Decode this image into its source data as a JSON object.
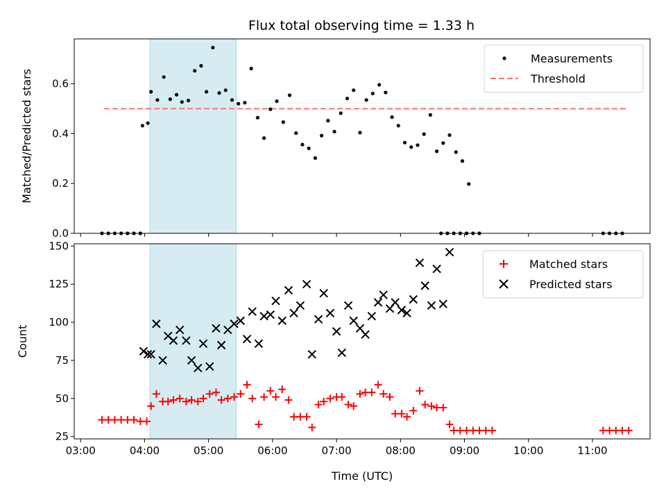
{
  "chart_data": [
    {
      "type": "scatter",
      "title": "Flux total observing time = 1.33 h",
      "xlabel": "",
      "ylabel": "Matched/Predicted stars",
      "xlim": [
        "02:54",
        "11:54"
      ],
      "ylim": [
        0,
        0.78
      ],
      "yticks": [
        "0.0",
        "0.2",
        "0.4",
        "0.6"
      ],
      "shaded_interval": [
        "04:05",
        "05:26"
      ],
      "grid": false,
      "legend_position": "top-right",
      "legend": [
        "Measurements",
        "Threshold"
      ],
      "series": [
        {
          "name": "Measurements",
          "marker": "dot",
          "color": "#000000",
          "points": [
            [
              "03:20",
              0
            ],
            [
              "03:26",
              0
            ],
            [
              "03:32",
              0
            ],
            [
              "03:38",
              0
            ],
            [
              "03:44",
              0
            ],
            [
              "03:50",
              0
            ],
            [
              "03:56",
              0
            ],
            [
              "03:58",
              0.432
            ],
            [
              "04:03",
              0.442
            ],
            [
              "04:06",
              0.568
            ],
            [
              "04:12",
              0.535
            ],
            [
              "04:18",
              0.627
            ],
            [
              "04:24",
              0.538
            ],
            [
              "04:30",
              0.556
            ],
            [
              "04:35",
              0.527
            ],
            [
              "04:41",
              0.533
            ],
            [
              "04:47",
              0.652
            ],
            [
              "04:53",
              0.672
            ],
            [
              "04:58",
              0.568
            ],
            [
              "05:04",
              0.745
            ],
            [
              "05:10",
              0.563
            ],
            [
              "05:16",
              0.574
            ],
            [
              "05:22",
              0.535
            ],
            [
              "05:28",
              0.52
            ],
            [
              "05:34",
              0.524
            ],
            [
              "05:40",
              0.661
            ],
            [
              "05:46",
              0.464
            ],
            [
              "05:52",
              0.382
            ],
            [
              "05:58",
              0.498
            ],
            [
              "06:04",
              0.53
            ],
            [
              "06:10",
              0.446
            ],
            [
              "06:16",
              0.554
            ],
            [
              "06:22",
              0.402
            ],
            [
              "06:28",
              0.356
            ],
            [
              "06:34",
              0.341
            ],
            [
              "06:40",
              0.302
            ],
            [
              "06:46",
              0.392
            ],
            [
              "06:52",
              0.452
            ],
            [
              "06:58",
              0.408
            ],
            [
              "07:04",
              0.482
            ],
            [
              "07:10",
              0.541
            ],
            [
              "07:16",
              0.574
            ],
            [
              "07:22",
              0.404
            ],
            [
              "07:28",
              0.535
            ],
            [
              "07:34",
              0.561
            ],
            [
              "07:40",
              0.596
            ],
            [
              "07:46",
              0.565
            ],
            [
              "07:52",
              0.466
            ],
            [
              "07:58",
              0.432
            ],
            [
              "08:04",
              0.364
            ],
            [
              "08:10",
              0.346
            ],
            [
              "08:16",
              0.354
            ],
            [
              "08:22",
              0.398
            ],
            [
              "08:28",
              0.475
            ],
            [
              "08:34",
              0.329
            ],
            [
              "08:40",
              0.362
            ],
            [
              "08:46",
              0.394
            ],
            [
              "08:52",
              0.326
            ],
            [
              "08:58",
              0.29
            ],
            [
              "09:04",
              0.198
            ],
            [
              "08:38",
              0
            ],
            [
              "08:44",
              0
            ],
            [
              "08:50",
              0
            ],
            [
              "08:56",
              0
            ],
            [
              "09:02",
              0
            ],
            [
              "09:08",
              0
            ],
            [
              "09:14",
              0
            ],
            [
              "11:10",
              0
            ],
            [
              "11:16",
              0
            ],
            [
              "11:22",
              0
            ],
            [
              "11:28",
              0
            ]
          ]
        },
        {
          "name": "Threshold",
          "style": "dashed",
          "color": "#ff7070",
          "points": [
            [
              "03:22",
              0.5
            ],
            [
              "11:32",
              0.5
            ]
          ]
        }
      ]
    },
    {
      "type": "scatter",
      "title": "",
      "xlabel": "Time (UTC)",
      "ylabel": "Count",
      "xlim": [
        "02:54",
        "11:54"
      ],
      "ylim": [
        23.5,
        151.5
      ],
      "yticks": [
        "25",
        "50",
        "75",
        "100",
        "125",
        "150"
      ],
      "xticks": [
        "03:00",
        "04:00",
        "05:00",
        "06:00",
        "07:00",
        "08:00",
        "09:00",
        "10:00",
        "11:00"
      ],
      "shaded_interval": [
        "04:05",
        "05:26"
      ],
      "grid": false,
      "legend_position": "top-right",
      "legend": [
        "Matched stars",
        "Predicted stars"
      ],
      "series": [
        {
          "name": "Matched stars",
          "marker": "plus",
          "color": "#ff0000",
          "points": [
            [
              "03:20",
              36
            ],
            [
              "03:26",
              36
            ],
            [
              "03:32",
              36
            ],
            [
              "03:38",
              36
            ],
            [
              "03:44",
              36
            ],
            [
              "03:50",
              36
            ],
            [
              "03:56",
              35
            ],
            [
              "04:02",
              35
            ],
            [
              "04:06",
              45
            ],
            [
              "04:11",
              53
            ],
            [
              "04:17",
              48
            ],
            [
              "04:22",
              48
            ],
            [
              "04:27",
              49
            ],
            [
              "04:33",
              50
            ],
            [
              "04:39",
              48
            ],
            [
              "04:44",
              49
            ],
            [
              "04:50",
              48
            ],
            [
              "04:55",
              50
            ],
            [
              "05:01",
              53
            ],
            [
              "05:07",
              54
            ],
            [
              "05:12",
              49
            ],
            [
              "05:18",
              50
            ],
            [
              "05:24",
              51
            ],
            [
              "05:30",
              53
            ],
            [
              "05:36",
              59
            ],
            [
              "05:41",
              50
            ],
            [
              "05:47",
              33
            ],
            [
              "05:52",
              51
            ],
            [
              "05:58",
              55
            ],
            [
              "06:03",
              51
            ],
            [
              "06:09",
              56
            ],
            [
              "06:15",
              49
            ],
            [
              "06:20",
              38
            ],
            [
              "06:26",
              38
            ],
            [
              "06:32",
              38
            ],
            [
              "06:37",
              31
            ],
            [
              "06:43",
              46
            ],
            [
              "06:48",
              48
            ],
            [
              "06:54",
              50
            ],
            [
              "07:00",
              51
            ],
            [
              "07:05",
              51
            ],
            [
              "07:11",
              46
            ],
            [
              "07:16",
              45
            ],
            [
              "07:22",
              53
            ],
            [
              "07:27",
              54
            ],
            [
              "07:33",
              54
            ],
            [
              "07:39",
              59
            ],
            [
              "07:44",
              53
            ],
            [
              "07:50",
              51
            ],
            [
              "07:55",
              40
            ],
            [
              "08:01",
              40
            ],
            [
              "08:06",
              38
            ],
            [
              "08:12",
              42
            ],
            [
              "08:18",
              55
            ],
            [
              "08:23",
              46
            ],
            [
              "08:29",
              45
            ],
            [
              "08:34",
              44
            ],
            [
              "08:40",
              44
            ],
            [
              "08:46",
              33
            ],
            [
              "08:50",
              29
            ],
            [
              "08:56",
              29
            ],
            [
              "09:02",
              29
            ],
            [
              "09:08",
              29
            ],
            [
              "09:14",
              29
            ],
            [
              "09:20",
              29
            ],
            [
              "09:26",
              29
            ],
            [
              "11:10",
              29
            ],
            [
              "11:16",
              29
            ],
            [
              "11:22",
              29
            ],
            [
              "11:28",
              29
            ],
            [
              "11:34",
              29
            ]
          ]
        },
        {
          "name": "Predicted stars",
          "marker": "x",
          "color": "#000000",
          "points": [
            [
              "03:59",
              81
            ],
            [
              "04:03",
              79
            ],
            [
              "04:06",
              79
            ],
            [
              "04:11",
              99
            ],
            [
              "04:17",
              75
            ],
            [
              "04:22",
              91
            ],
            [
              "04:27",
              88
            ],
            [
              "04:33",
              95
            ],
            [
              "04:39",
              88
            ],
            [
              "04:44",
              75
            ],
            [
              "04:50",
              70
            ],
            [
              "04:55",
              86
            ],
            [
              "05:01",
              71
            ],
            [
              "05:07",
              96
            ],
            [
              "05:12",
              85
            ],
            [
              "05:18",
              95
            ],
            [
              "05:24",
              99
            ],
            [
              "05:30",
              101
            ],
            [
              "05:36",
              89
            ],
            [
              "05:41",
              107
            ],
            [
              "05:47",
              86
            ],
            [
              "05:52",
              104
            ],
            [
              "05:58",
              105
            ],
            [
              "06:03",
              114
            ],
            [
              "06:09",
              101
            ],
            [
              "06:15",
              121
            ],
            [
              "06:20",
              106
            ],
            [
              "06:26",
              111
            ],
            [
              "06:32",
              125
            ],
            [
              "06:37",
              79
            ],
            [
              "06:43",
              102
            ],
            [
              "06:48",
              119
            ],
            [
              "06:54",
              106
            ],
            [
              "07:00",
              94
            ],
            [
              "07:05",
              80
            ],
            [
              "07:11",
              111
            ],
            [
              "07:16",
              101
            ],
            [
              "07:22",
              96
            ],
            [
              "07:27",
              92
            ],
            [
              "07:33",
              104
            ],
            [
              "07:39",
              113
            ],
            [
              "07:44",
              118
            ],
            [
              "07:50",
              109
            ],
            [
              "07:55",
              113
            ],
            [
              "08:01",
              108
            ],
            [
              "08:06",
              106
            ],
            [
              "08:12",
              115
            ],
            [
              "08:18",
              139
            ],
            [
              "08:23",
              124
            ],
            [
              "08:29",
              111
            ],
            [
              "08:34",
              135
            ],
            [
              "08:40",
              112
            ],
            [
              "08:46",
              146
            ]
          ]
        }
      ]
    }
  ]
}
